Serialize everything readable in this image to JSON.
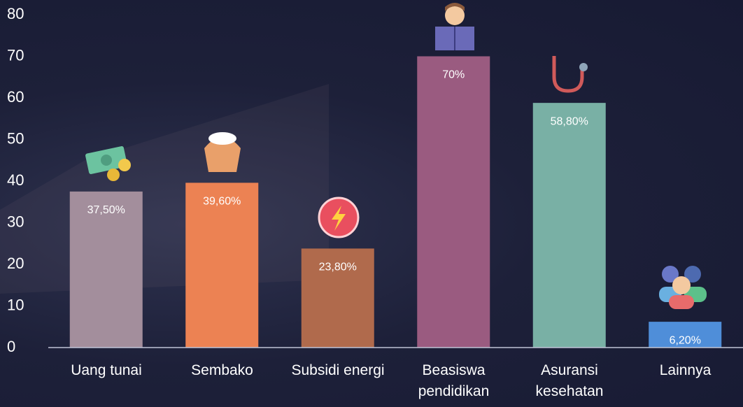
{
  "chart_data": {
    "type": "bar",
    "categories": [
      "Uang tunai",
      "Sembako",
      "Subsidi energi",
      "Beasiswa pendidikan",
      "Asuransi kesehatan",
      "Lainnya"
    ],
    "values": [
      37.5,
      39.6,
      23.8,
      70,
      58.8,
      6.2
    ],
    "value_labels": [
      "37,50%",
      "39,60%",
      "23,80%",
      "70%",
      "58,80%",
      "6,20%"
    ],
    "colors": [
      "#a38e9c",
      "#ec8253",
      "#b06a4c",
      "#9a5b80",
      "#79b0a5",
      "#4f8ed9"
    ],
    "ylim": [
      0,
      80
    ],
    "yticks": [
      0,
      10,
      20,
      30,
      40,
      50,
      60,
      70,
      80
    ],
    "grid": false
  }
}
